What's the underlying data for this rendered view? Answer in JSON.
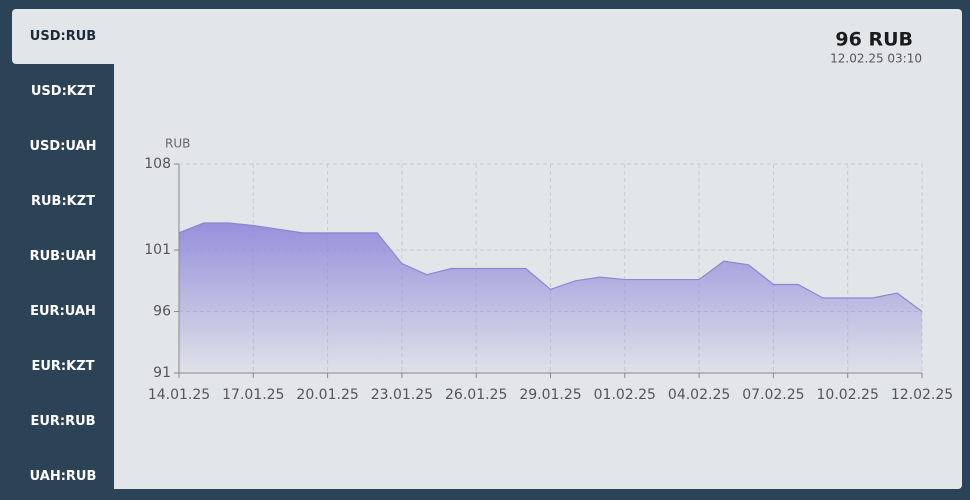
{
  "tabs": [
    "USD:RUB",
    "USD:KZT",
    "USD:UAH",
    "RUB:KZT",
    "RUB:UAH",
    "EUR:UAH",
    "EUR:KZT",
    "EUR:RUB",
    "UAH:RUB"
  ],
  "header": {
    "value": "96 RUB",
    "timestamp": "12.02.25 03:10"
  },
  "chart_data": {
    "type": "area",
    "y_label": "RUB",
    "categories": [
      "14.01.25",
      null,
      null,
      "17.01.25",
      null,
      null,
      "20.01.25",
      null,
      null,
      "23.01.25",
      null,
      null,
      "26.01.25",
      null,
      null,
      "29.01.25",
      null,
      null,
      "01.02.25",
      null,
      null,
      "04.02.25",
      null,
      null,
      "07.02.25",
      null,
      null,
      "10.02.25",
      null,
      null,
      "12.02.25"
    ],
    "values": [
      102.4,
      103.2,
      103.2,
      103.0,
      102.7,
      102.4,
      102.4,
      102.4,
      102.4,
      99.9,
      99.0,
      99.5,
      99.5,
      99.5,
      99.5,
      97.8,
      98.5,
      98.8,
      98.6,
      98.6,
      98.6,
      98.6,
      100.1,
      99.8,
      98.2,
      98.2,
      97.1,
      97.1,
      97.1,
      97.5,
      96.0
    ],
    "ylim": [
      91,
      108
    ],
    "yticks": [
      91,
      96,
      101,
      108
    ],
    "color": "#8c86d4",
    "grid": true
  }
}
